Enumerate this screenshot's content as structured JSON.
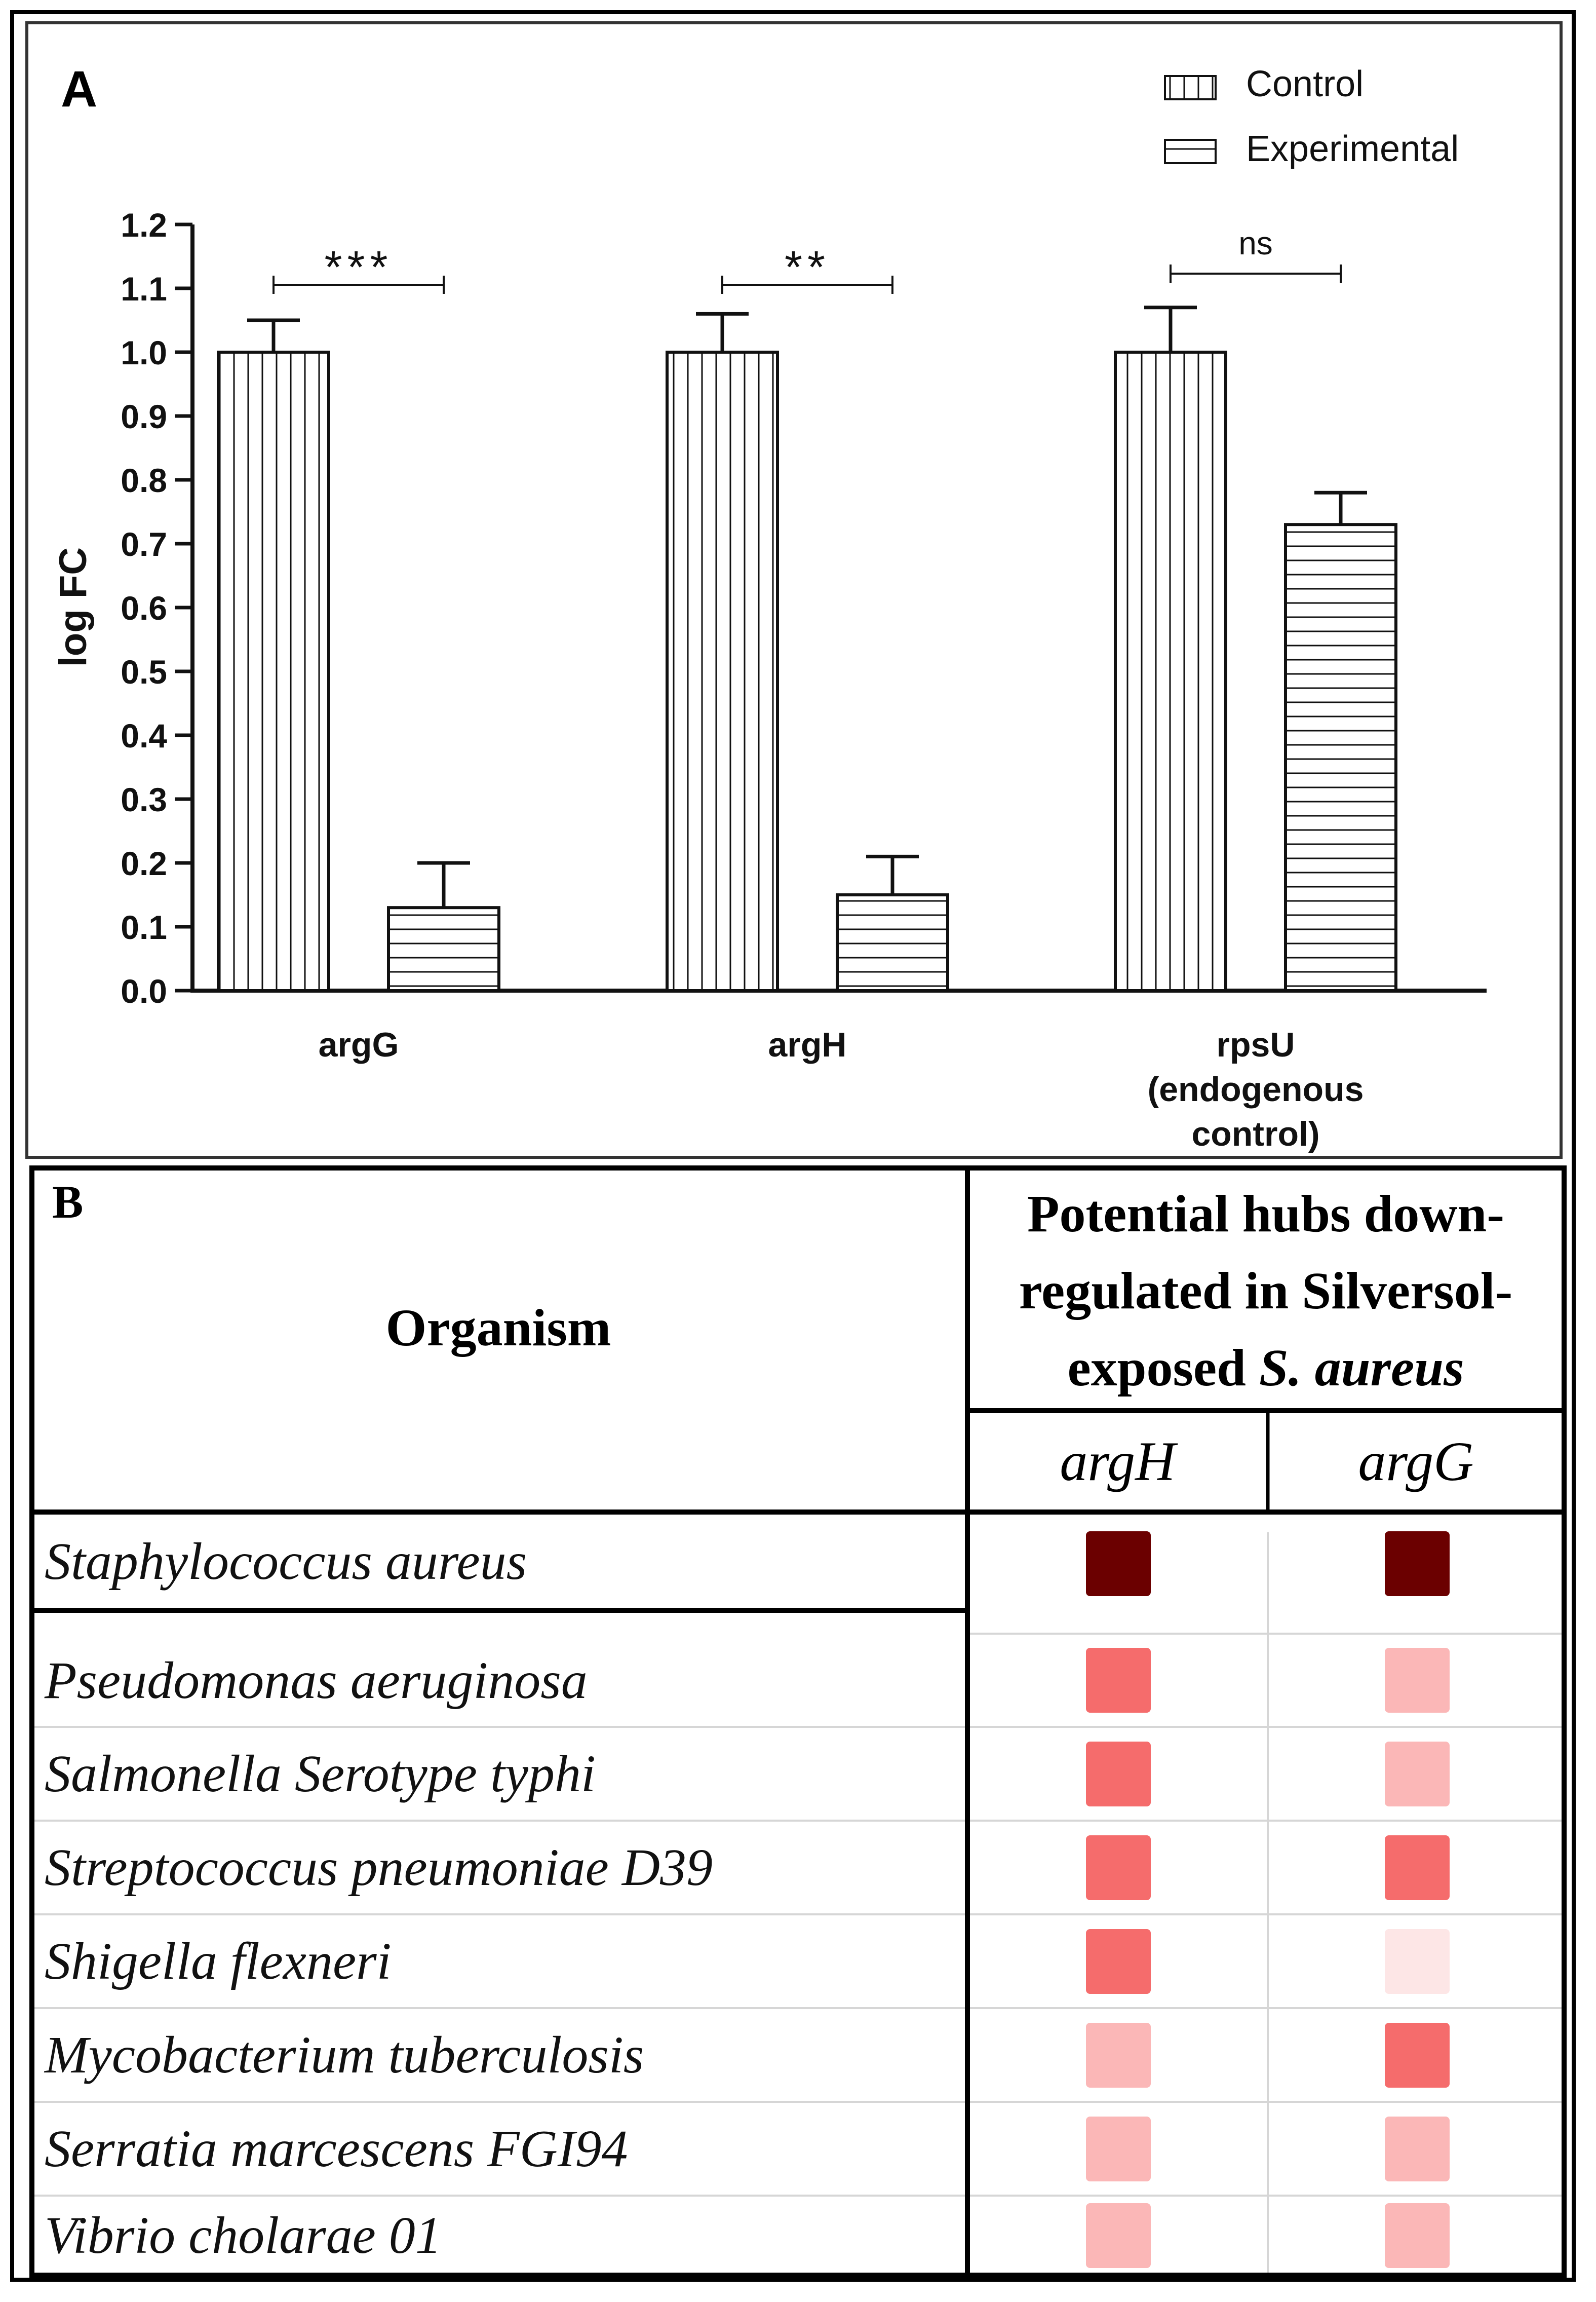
{
  "panel_a": {
    "label": "A",
    "legend": [
      {
        "name": "Control",
        "pattern": "vertical"
      },
      {
        "name": "Experimental",
        "pattern": "horizontal"
      }
    ]
  },
  "chart_data": {
    "type": "bar",
    "title": "",
    "xlabel": "",
    "ylabel": "log FC",
    "ylim": [
      0,
      1.2
    ],
    "yticks": [
      "0.0",
      "0.1",
      "0.2",
      "0.3",
      "0.4",
      "0.5",
      "0.6",
      "0.7",
      "0.8",
      "0.9",
      "1.0",
      "1.1",
      "1.2"
    ],
    "categories": [
      "argG",
      "argH",
      "rpsU (endogenous control)"
    ],
    "category_lines": [
      [
        "argG"
      ],
      [
        "argH"
      ],
      [
        "rpsU",
        "(endogenous",
        "control)"
      ]
    ],
    "series": [
      {
        "name": "Control",
        "values": [
          1.0,
          1.0,
          1.0
        ],
        "errors": [
          0.05,
          0.06,
          0.07
        ]
      },
      {
        "name": "Experimental",
        "values": [
          0.13,
          0.15,
          0.73
        ],
        "errors": [
          0.07,
          0.06,
          0.05
        ]
      }
    ],
    "significance": [
      "***",
      "**",
      "ns"
    ]
  },
  "panel_b": {
    "label": "B",
    "organism_header": "Organism",
    "hub_header_lines": [
      "Potential hubs down-",
      "regulated in Silversol-",
      "exposed "
    ],
    "hub_header_species": "S. aureus",
    "gene_columns": [
      "argH",
      "argG"
    ],
    "colors": {
      "dark": "#6b0000",
      "strong": "#f56c6c",
      "light": "#fbb7b7",
      "faint": "#fde6e6"
    },
    "rows": [
      {
        "organism": "Staphylococcus aureus",
        "argH": "dark",
        "argG": "dark"
      },
      {
        "organism": "Pseudomonas aeruginosa",
        "argH": "strong",
        "argG": "light"
      },
      {
        "organism": "Salmonella Serotype typhi",
        "argH": "strong",
        "argG": "light"
      },
      {
        "organism": "Streptococcus pneumoniae D39",
        "argH": "strong",
        "argG": "strong"
      },
      {
        "organism": "Shigella flexneri",
        "argH": "strong",
        "argG": "faint"
      },
      {
        "organism": "Mycobacterium tuberculosis",
        "argH": "light",
        "argG": "strong"
      },
      {
        "organism": "Serratia marcescens FGI94",
        "argH": "light",
        "argG": "light"
      },
      {
        "organism": "Vibrio cholarae 01",
        "argH": "light",
        "argG": "light"
      }
    ]
  }
}
